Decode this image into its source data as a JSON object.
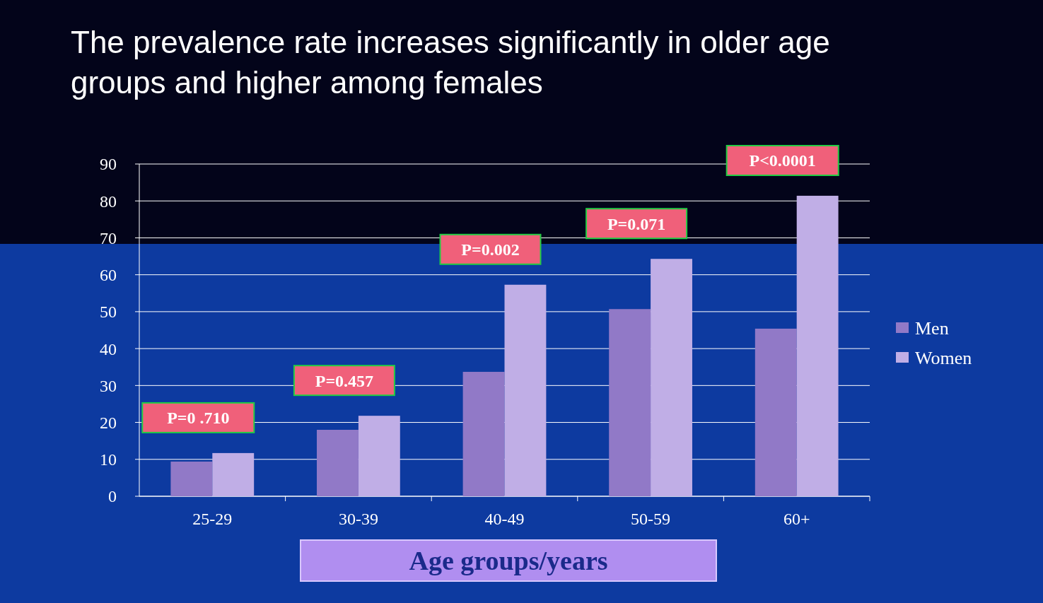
{
  "chart_data": {
    "type": "bar",
    "title": "The prevalence rate increases significantly in older age groups and higher among females",
    "xlabel": "Age groups/years",
    "categories": [
      "25-29",
      "30-39",
      "40-49",
      "50-59",
      "60+"
    ],
    "series": [
      {
        "name": "Men",
        "color": "#9179c7",
        "values": [
          9.4,
          18,
          33.7,
          50.7,
          45.4
        ]
      },
      {
        "name": "Women",
        "color": "#c0aee6",
        "values": [
          11.7,
          21.8,
          57.3,
          64.3,
          81.4
        ]
      }
    ],
    "ylim": [
      0,
      90
    ],
    "yticks": [
      0,
      10,
      20,
      30,
      40,
      50,
      60,
      70,
      80,
      90
    ],
    "grid": "y",
    "legend": "right",
    "annotations": [
      "P=0 .710",
      "P=0.457",
      "P=0.002",
      "P=0.071",
      "P<0.0001"
    ]
  }
}
